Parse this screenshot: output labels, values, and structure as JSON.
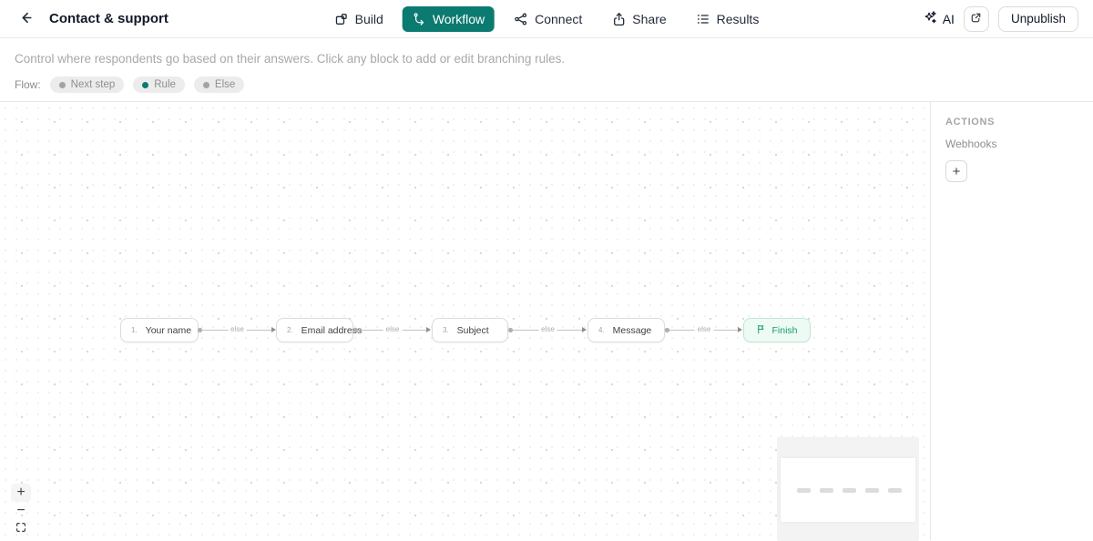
{
  "header": {
    "title": "Contact & support",
    "tabs": [
      {
        "label": "Build",
        "icon": "build-icon",
        "active": false
      },
      {
        "label": "Workflow",
        "icon": "workflow-icon",
        "active": true
      },
      {
        "label": "Connect",
        "icon": "connect-icon",
        "active": false
      },
      {
        "label": "Share",
        "icon": "share-icon",
        "active": false
      },
      {
        "label": "Results",
        "icon": "results-icon",
        "active": false
      }
    ],
    "ai_label": "AI",
    "unpublish_label": "Unpublish"
  },
  "subheader": {
    "description": "Control where respondents go based on their answers. Click any block to add or edit branching rules.",
    "flow_label": "Flow:",
    "legend": [
      {
        "label": "Next step",
        "dot_color": "#a3a3a3"
      },
      {
        "label": "Rule",
        "dot_color": "#0b7a70"
      },
      {
        "label": "Else",
        "dot_color": "#a3a3a3"
      }
    ]
  },
  "canvas": {
    "nodes": [
      {
        "number": "1.",
        "label": "Your name"
      },
      {
        "number": "2.",
        "label": "Email address"
      },
      {
        "number": "3.",
        "label": "Subject"
      },
      {
        "number": "4.",
        "label": "Message"
      }
    ],
    "finish": {
      "label": "Finish"
    },
    "edge_label": "else",
    "zoom": {
      "in": "+",
      "out": "−"
    },
    "minimap": {
      "bar_count": 5
    }
  },
  "sidebar": {
    "title": "ACTIONS",
    "webhooks_label": "Webhooks",
    "add_label": "+"
  },
  "colors": {
    "accent": "#0b7a70",
    "finish_bg": "#eefaf4",
    "finish_border": "#bfe5d4",
    "finish_text": "#13a06e"
  }
}
